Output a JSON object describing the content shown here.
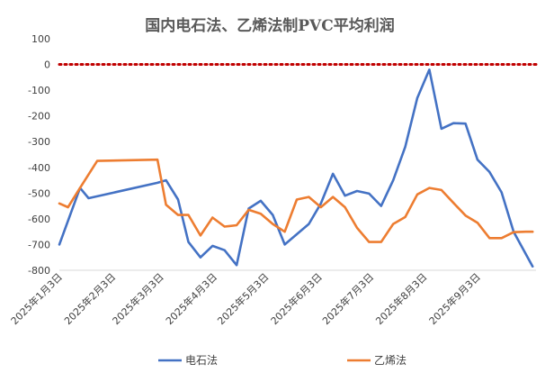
{
  "chart_data": {
    "type": "line",
    "title": "国内电石法、乙烯法制PVC平均利润",
    "xlabel": "",
    "ylabel": "",
    "ylim": [
      -800,
      100
    ],
    "yticks": [
      100,
      0,
      -100,
      -200,
      -300,
      -400,
      -500,
      -600,
      -700,
      -800
    ],
    "grid": false,
    "legend_position": "bottom",
    "reference_line": {
      "y": 0,
      "style": "dotted",
      "color": "#c00000"
    },
    "x_tick_labels": [
      "2025年1月3日",
      "2025年2月3日",
      "2025年3月3日",
      "2025年4月3日",
      "2025年5月3日",
      "2025年6月3日",
      "2025年7月3日",
      "2025年8月3日",
      "2025年9月3日"
    ],
    "x_start": "2025-01-01",
    "x_end": "2025-10-05",
    "series": [
      {
        "name": "电石法",
        "color": "#4472c4",
        "points": [
          [
            "2025-01-01",
            -700
          ],
          [
            "2025-01-13",
            -480
          ],
          [
            "2025-01-18",
            -520
          ],
          [
            "2025-02-27",
            -460
          ],
          [
            "2025-03-04",
            -450
          ],
          [
            "2025-03-11",
            -525
          ],
          [
            "2025-03-17",
            -690
          ],
          [
            "2025-03-24",
            -750
          ],
          [
            "2025-03-31",
            -705
          ],
          [
            "2025-04-07",
            -722
          ],
          [
            "2025-04-14",
            -780
          ],
          [
            "2025-04-21",
            -560
          ],
          [
            "2025-04-28",
            -530
          ],
          [
            "2025-05-05",
            -585
          ],
          [
            "2025-05-12",
            -700
          ],
          [
            "2025-05-19",
            -660
          ],
          [
            "2025-05-26",
            -620
          ],
          [
            "2025-06-02",
            -540
          ],
          [
            "2025-06-09",
            -425
          ],
          [
            "2025-06-16",
            -510
          ],
          [
            "2025-06-23",
            -492
          ],
          [
            "2025-06-30",
            -502
          ],
          [
            "2025-07-07",
            -550
          ],
          [
            "2025-07-14",
            -450
          ],
          [
            "2025-07-21",
            -320
          ],
          [
            "2025-07-28",
            -130
          ],
          [
            "2025-08-04",
            -20
          ],
          [
            "2025-08-11",
            -250
          ],
          [
            "2025-08-18",
            -228
          ],
          [
            "2025-08-25",
            -230
          ],
          [
            "2025-09-01",
            -370
          ],
          [
            "2025-09-08",
            -418
          ],
          [
            "2025-09-15",
            -497
          ],
          [
            "2025-09-22",
            -650
          ],
          [
            "2025-10-03",
            -785
          ]
        ]
      },
      {
        "name": "乙烯法",
        "color": "#ed7d31",
        "points": [
          [
            "2025-01-01",
            -540
          ],
          [
            "2025-01-06",
            -555
          ],
          [
            "2025-01-13",
            -480
          ],
          [
            "2025-01-23",
            -375
          ],
          [
            "2025-02-27",
            -370
          ],
          [
            "2025-03-04",
            -545
          ],
          [
            "2025-03-11",
            -585
          ],
          [
            "2025-03-17",
            -585
          ],
          [
            "2025-03-24",
            -665
          ],
          [
            "2025-03-31",
            -595
          ],
          [
            "2025-04-07",
            -630
          ],
          [
            "2025-04-14",
            -625
          ],
          [
            "2025-04-21",
            -565
          ],
          [
            "2025-04-28",
            -580
          ],
          [
            "2025-05-05",
            -620
          ],
          [
            "2025-05-12",
            -650
          ],
          [
            "2025-05-19",
            -525
          ],
          [
            "2025-05-26",
            -515
          ],
          [
            "2025-06-02",
            -555
          ],
          [
            "2025-06-09",
            -515
          ],
          [
            "2025-06-16",
            -555
          ],
          [
            "2025-06-23",
            -635
          ],
          [
            "2025-06-30",
            -690
          ],
          [
            "2025-07-07",
            -690
          ],
          [
            "2025-07-14",
            -620
          ],
          [
            "2025-07-21",
            -593
          ],
          [
            "2025-07-28",
            -505
          ],
          [
            "2025-08-04",
            -480
          ],
          [
            "2025-08-11",
            -488
          ],
          [
            "2025-08-18",
            -538
          ],
          [
            "2025-08-25",
            -587
          ],
          [
            "2025-09-01",
            -615
          ],
          [
            "2025-09-08",
            -675
          ],
          [
            "2025-09-15",
            -675
          ],
          [
            "2025-09-22",
            -652
          ],
          [
            "2025-09-29",
            -650
          ],
          [
            "2025-10-03",
            -650
          ]
        ]
      }
    ]
  }
}
